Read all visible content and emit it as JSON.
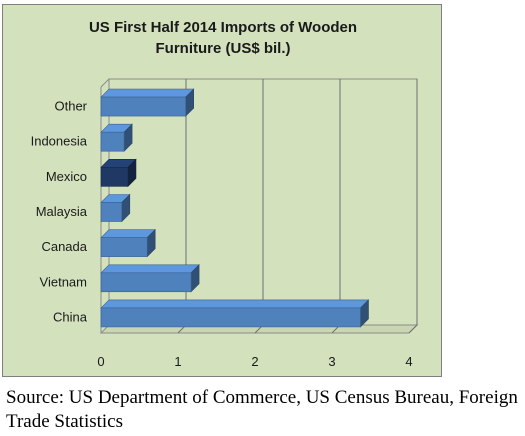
{
  "chart_data": {
    "type": "bar",
    "orientation": "horizontal",
    "title": "US First Half 2014 Imports of Wooden\nFurniture (US$ bil.)",
    "categories": [
      "Other",
      "Indonesia",
      "Mexico",
      "Malaysia",
      "Canada",
      "Vietnam",
      "China"
    ],
    "values": [
      1.1,
      0.3,
      0.35,
      0.27,
      0.6,
      1.17,
      3.37
    ],
    "highlight_category": "Mexico",
    "xticks": [
      "0",
      "1",
      "2",
      "3",
      "4"
    ],
    "xlim": [
      0,
      4
    ],
    "grid": true,
    "bar_color": "#4f81bd",
    "highlight_color": "#1f3864",
    "background_color": "#d4e1bd"
  },
  "source_note": "Source: US Department of Commerce, US Census Bureau, Foreign Trade Statistics"
}
